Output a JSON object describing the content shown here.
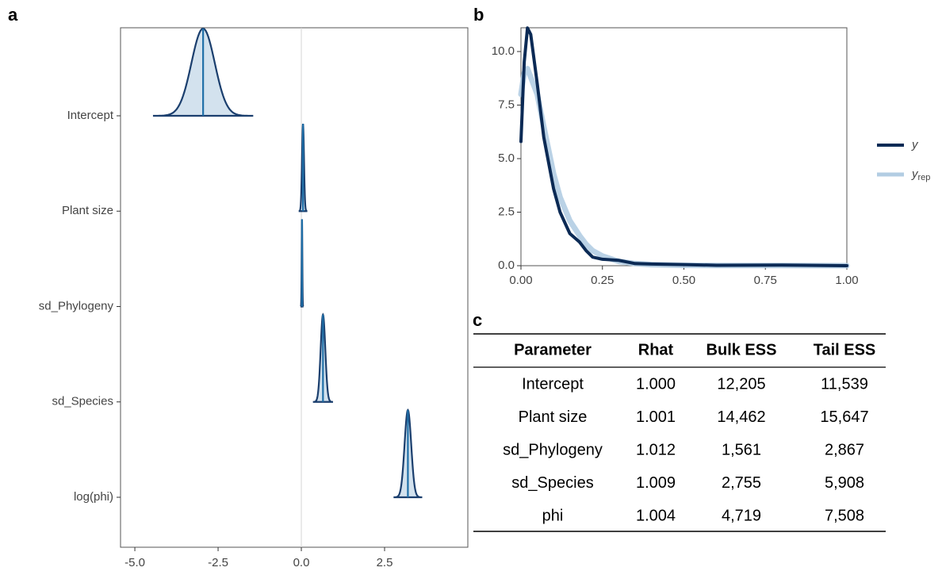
{
  "chart_data": [
    {
      "label": "a",
      "type": "ridge",
      "categories": [
        "Intercept",
        "Plant size",
        "sd_Phylogeny",
        "sd_Species",
        "log(phi)"
      ],
      "values": [
        -2.95,
        0.05,
        0.02,
        0.65,
        3.2
      ],
      "spread": [
        0.35,
        0.03,
        0.01,
        0.07,
        0.1
      ],
      "xlim": [
        -5.43,
        5.0
      ],
      "xticks": [
        {
          "value": -5,
          "label": "-5.0"
        },
        -2.5,
        {
          "value": 0,
          "label": "0.0"
        },
        2.5
      ],
      "color": "#1b3f6e",
      "fill": "#d3e2ee"
    },
    {
      "label": "b",
      "type": "line",
      "x": [
        0,
        0.01,
        0.02,
        0.03,
        0.05,
        0.07,
        0.1,
        0.12,
        0.15,
        0.18,
        0.2,
        0.22,
        0.25,
        0.3,
        0.35,
        0.4,
        0.5,
        0.6,
        0.8,
        1.0
      ],
      "series": [
        {
          "name": "y",
          "color": "#0b2a55",
          "values": [
            5.8,
            9.5,
            11.1,
            10.8,
            8.5,
            6,
            3.6,
            2.5,
            1.5,
            1.1,
            0.7,
            0.4,
            0.3,
            0.25,
            0.1,
            0.08,
            0.05,
            0.02,
            0.03,
            0
          ]
        },
        {
          "name": "y",
          "subscript": "rep",
          "color": "#b3cde3",
          "values": [
            8,
            9,
            9.2,
            8.8,
            8,
            6.5,
            4.3,
            3.2,
            2.1,
            1.4,
            1.0,
            0.7,
            0.45,
            0.2,
            0.1,
            0.05,
            0.02,
            0.01,
            0.01,
            0
          ]
        }
      ],
      "xlim": [
        0,
        1
      ],
      "xticks": [
        {
          "value": 0,
          "label": "0.00"
        },
        0.25,
        {
          "value": 0.5,
          "label": "0.50"
        },
        0.75,
        {
          "value": 1,
          "label": "1.00"
        }
      ],
      "ylim": [
        0,
        11.11
      ],
      "yticks": [
        {
          "value": 0,
          "label": "0.0"
        },
        2.5,
        {
          "value": 5,
          "label": "5.0"
        },
        7.5,
        {
          "value": 10,
          "label": "10.0"
        }
      ]
    }
  ],
  "table": {
    "label": "c",
    "columns": [
      "Parameter",
      "Rhat",
      "Bulk ESS",
      "Tail ESS"
    ],
    "rows": [
      [
        "Intercept",
        "1.000",
        "12,205",
        "11,539"
      ],
      [
        "Plant size",
        "1.001",
        "14,462",
        "15,647"
      ],
      [
        "sd_Phylogeny",
        "1.012",
        "1,561",
        "2,867"
      ],
      [
        "sd_Species",
        "1.009",
        "2,755",
        "5,908"
      ],
      [
        "phi",
        "1.004",
        "4,719",
        "7,508"
      ]
    ]
  }
}
